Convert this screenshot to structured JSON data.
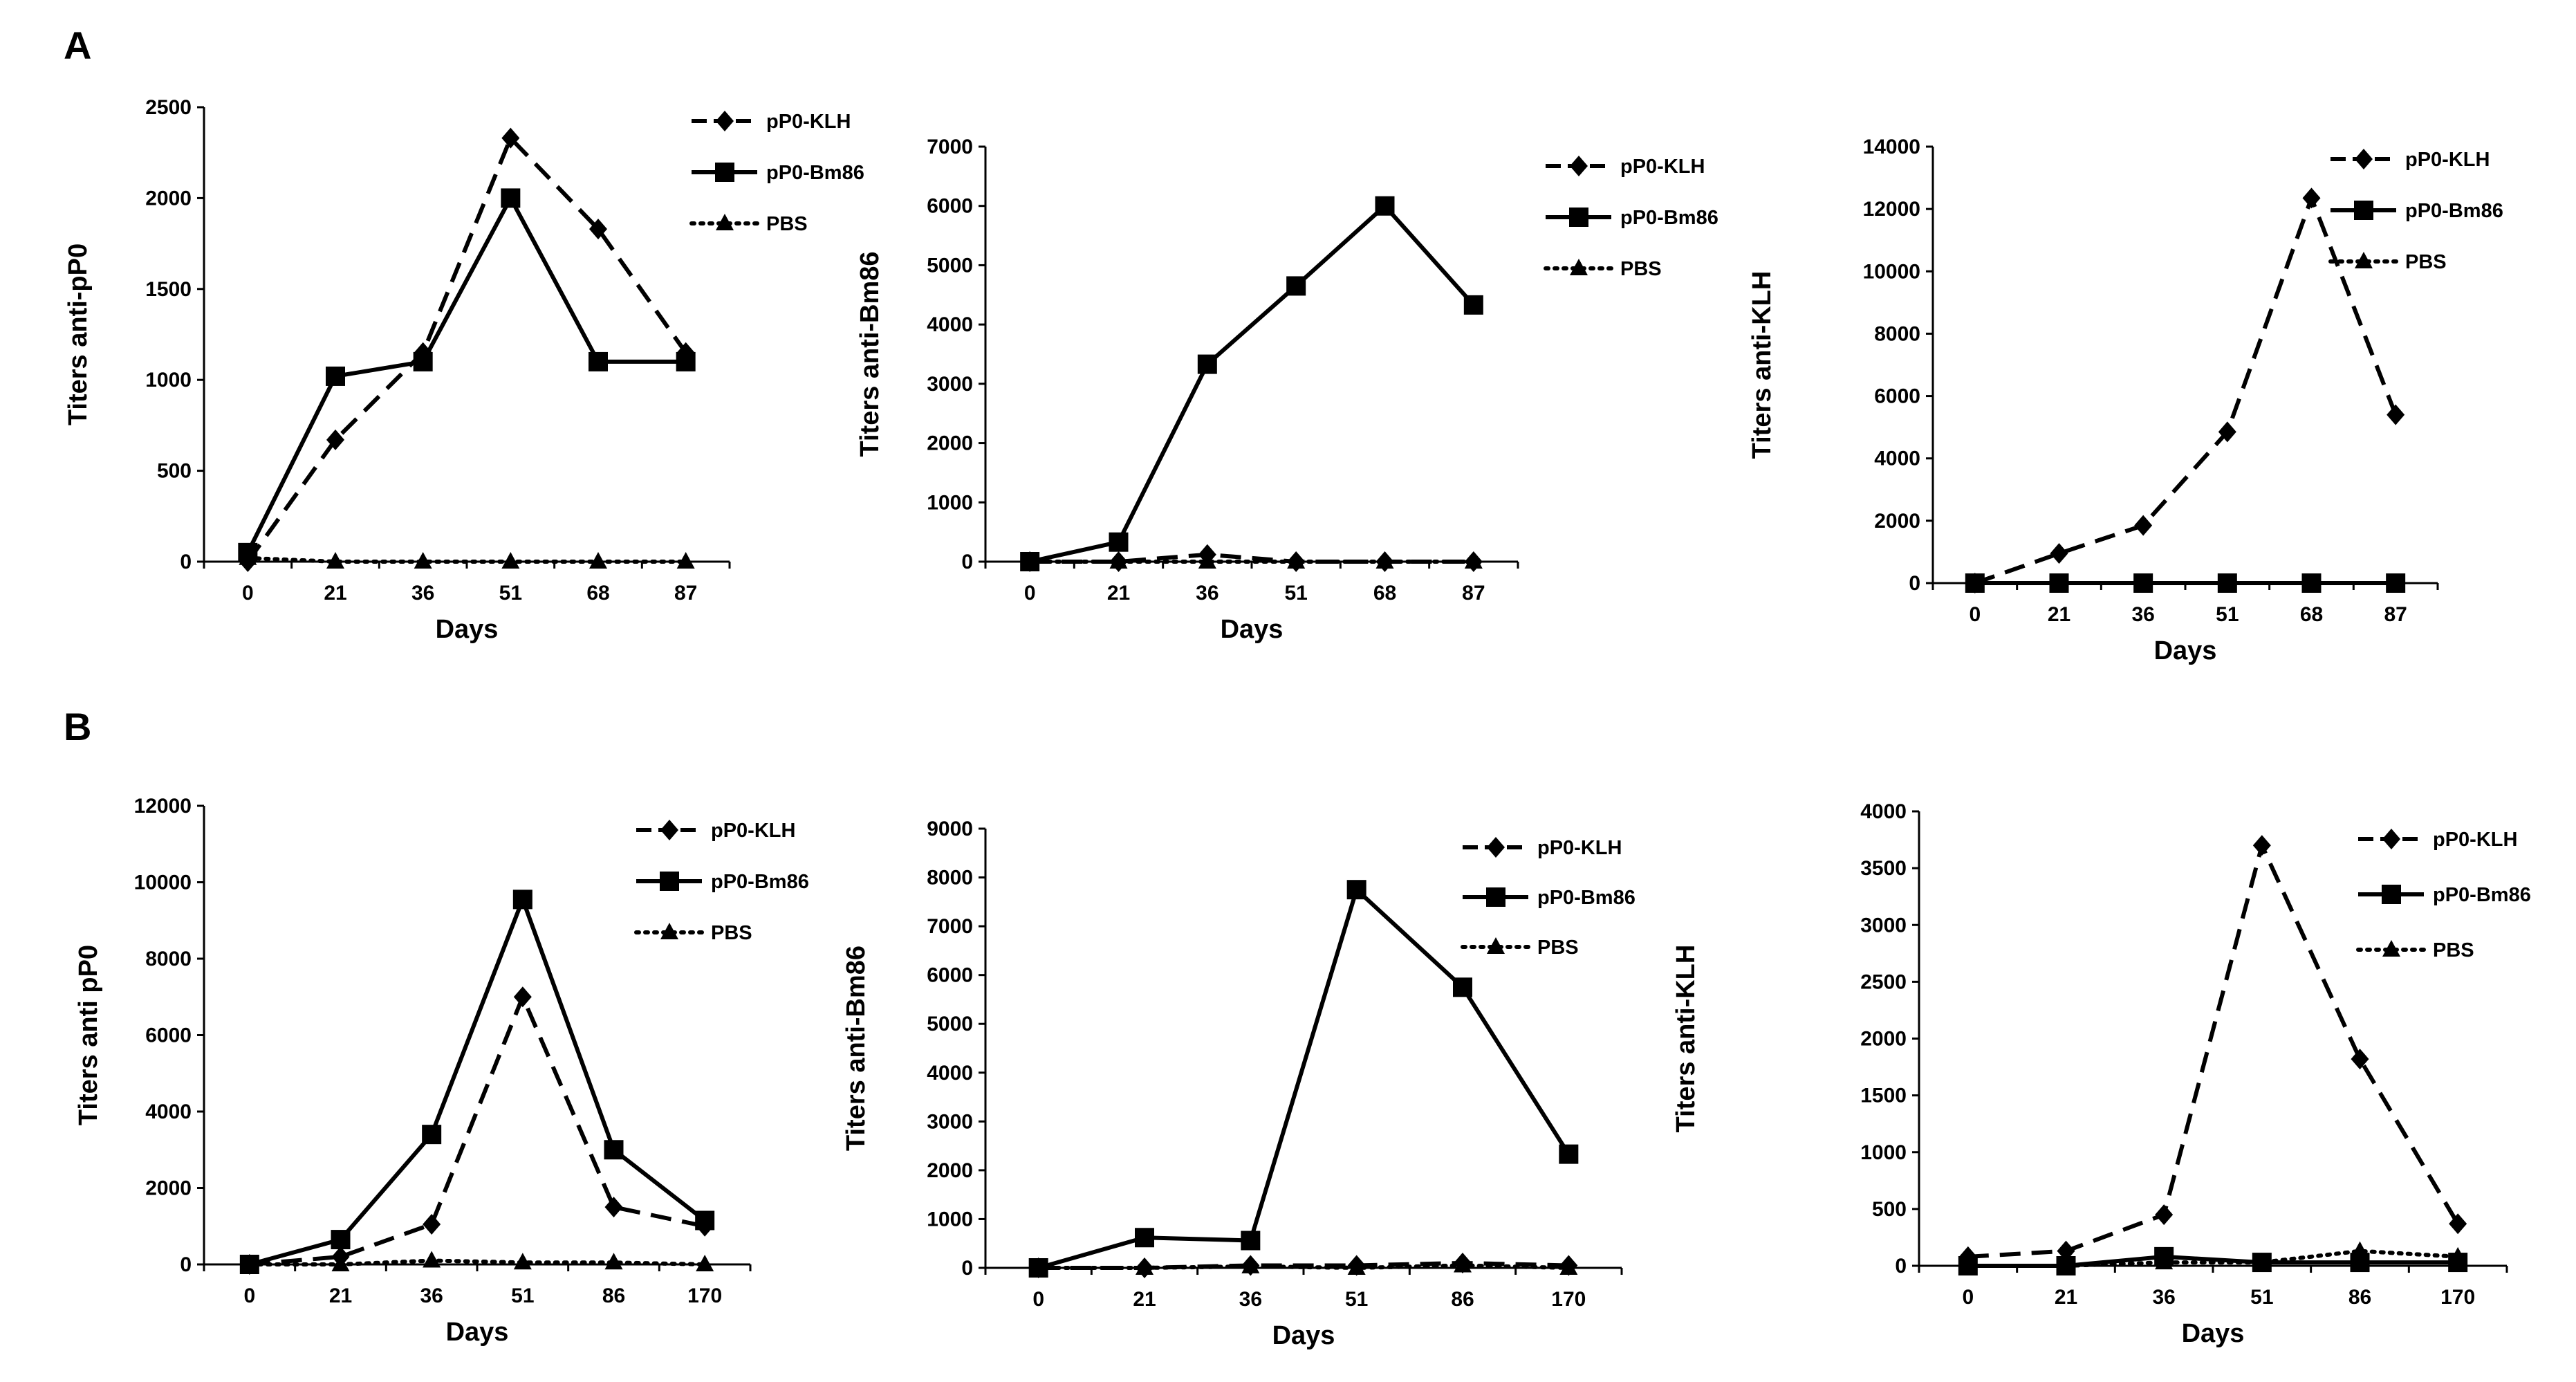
{
  "panels": [
    {
      "letter": "A"
    },
    {
      "letter": "B"
    }
  ],
  "chart_data": [
    {
      "type": "line",
      "panel": "A",
      "x": [
        0,
        21,
        36,
        51,
        68,
        87
      ],
      "xlabel": "Days",
      "ylabel": "Titers anti-pP0",
      "ylim": [
        0,
        2500
      ],
      "yticks": [
        0,
        500,
        1000,
        1500,
        2000,
        2500
      ],
      "legend_position": "top-right",
      "series": [
        {
          "name": "pP0-KLH",
          "style": "dashed",
          "marker": "diamond",
          "values": [
            0,
            670,
            1150,
            2330,
            1830,
            1150
          ]
        },
        {
          "name": "pP0-Bm86",
          "style": "solid",
          "marker": "square",
          "values": [
            50,
            1020,
            1100,
            2000,
            1100,
            1100
          ]
        },
        {
          "name": "PBS",
          "style": "dotted",
          "marker": "triangle",
          "values": [
            20,
            0,
            0,
            0,
            0,
            0
          ]
        }
      ]
    },
    {
      "type": "line",
      "panel": "A",
      "x": [
        0,
        21,
        36,
        51,
        68,
        87
      ],
      "xlabel": "Days",
      "ylabel": "Titers anti-Bm86",
      "ylim": [
        0,
        7000
      ],
      "yticks": [
        0,
        1000,
        2000,
        3000,
        4000,
        5000,
        6000,
        7000
      ],
      "legend_position": "top-right",
      "series": [
        {
          "name": "pP0-KLH",
          "style": "dashed",
          "marker": "diamond",
          "values": [
            0,
            0,
            120,
            0,
            0,
            0
          ]
        },
        {
          "name": "pP0-Bm86",
          "style": "solid",
          "marker": "square",
          "values": [
            0,
            330,
            3330,
            4650,
            6000,
            4330
          ]
        },
        {
          "name": "PBS",
          "style": "dotted",
          "marker": "triangle",
          "values": [
            0,
            0,
            0,
            0,
            0,
            0
          ]
        }
      ]
    },
    {
      "type": "line",
      "panel": "A",
      "x": [
        0,
        21,
        36,
        51,
        68,
        87
      ],
      "xlabel": "Days",
      "ylabel": "Titers anti-KLH",
      "ylim": [
        0,
        14000
      ],
      "yticks": [
        0,
        2000,
        4000,
        6000,
        8000,
        10000,
        12000,
        14000
      ],
      "legend_position": "top-right",
      "series": [
        {
          "name": "pP0-KLH",
          "style": "dashed",
          "marker": "diamond",
          "values": [
            0,
            950,
            1850,
            4850,
            12350,
            5400
          ]
        },
        {
          "name": "pP0-Bm86",
          "style": "solid",
          "marker": "square",
          "values": [
            0,
            0,
            0,
            0,
            0,
            0
          ]
        },
        {
          "name": "PBS",
          "style": "dotted",
          "marker": "triangle",
          "values": [
            0,
            0,
            0,
            0,
            0,
            0
          ]
        }
      ]
    },
    {
      "type": "line",
      "panel": "B",
      "x": [
        0,
        21,
        36,
        51,
        86,
        170
      ],
      "xlabel": "Days",
      "ylabel": "Titers anti pP0",
      "ylim": [
        0,
        12000
      ],
      "yticks": [
        0,
        2000,
        4000,
        6000,
        8000,
        10000,
        12000
      ],
      "legend_position": "top-right",
      "series": [
        {
          "name": "pP0-KLH",
          "style": "dashed",
          "marker": "diamond",
          "values": [
            0,
            200,
            1050,
            7000,
            1500,
            1000
          ]
        },
        {
          "name": "pP0-Bm86",
          "style": "solid",
          "marker": "square",
          "values": [
            0,
            650,
            3400,
            9550,
            3000,
            1150
          ]
        },
        {
          "name": "PBS",
          "style": "dotted",
          "marker": "triangle",
          "values": [
            0,
            0,
            100,
            50,
            50,
            0
          ]
        }
      ]
    },
    {
      "type": "line",
      "panel": "B",
      "x": [
        0,
        21,
        36,
        51,
        86,
        170
      ],
      "xlabel": "Days",
      "ylabel": "Titers anti-Bm86",
      "ylim": [
        0,
        9000
      ],
      "yticks": [
        0,
        1000,
        2000,
        3000,
        4000,
        5000,
        6000,
        7000,
        8000,
        9000
      ],
      "legend_position": "top-right",
      "series": [
        {
          "name": "pP0-KLH",
          "style": "dashed",
          "marker": "diamond",
          "values": [
            0,
            0,
            50,
            50,
            100,
            50
          ]
        },
        {
          "name": "pP0-Bm86",
          "style": "solid",
          "marker": "square",
          "values": [
            0,
            620,
            560,
            7750,
            5750,
            2330
          ]
        },
        {
          "name": "PBS",
          "style": "dotted",
          "marker": "triangle",
          "values": [
            0,
            0,
            30,
            0,
            50,
            0
          ]
        }
      ]
    },
    {
      "type": "line",
      "panel": "B",
      "x": [
        0,
        21,
        36,
        51,
        86,
        170
      ],
      "xlabel": "Days",
      "ylabel": "Titers anti-KLH",
      "ylim": [
        0,
        4000
      ],
      "yticks": [
        0,
        500,
        1000,
        1500,
        2000,
        2500,
        3000,
        3500,
        4000
      ],
      "legend_position": "top-right",
      "series": [
        {
          "name": "pP0-KLH",
          "style": "dashed",
          "marker": "diamond",
          "values": [
            80,
            130,
            450,
            3700,
            1820,
            370
          ]
        },
        {
          "name": "pP0-Bm86",
          "style": "solid",
          "marker": "square",
          "values": [
            0,
            0,
            80,
            30,
            30,
            30
          ]
        },
        {
          "name": "PBS",
          "style": "dotted",
          "marker": "triangle",
          "values": [
            0,
            0,
            30,
            30,
            130,
            80
          ]
        }
      ]
    }
  ]
}
